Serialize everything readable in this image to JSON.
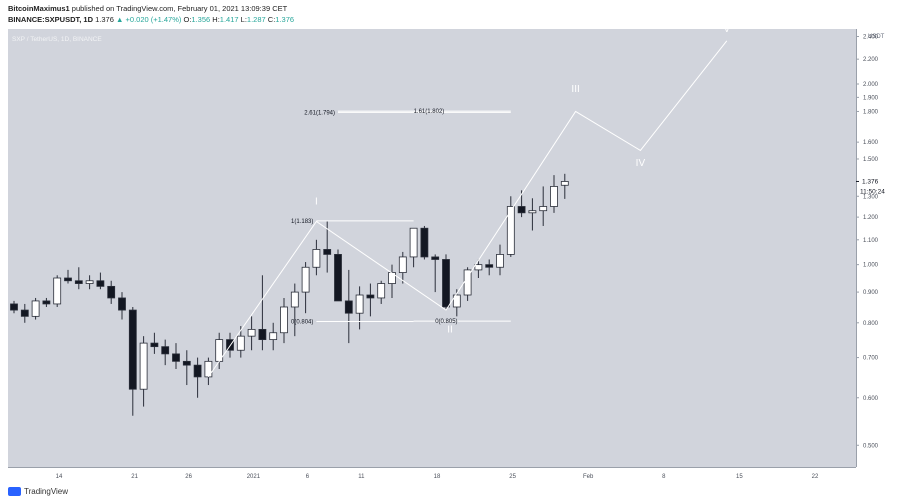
{
  "header": {
    "author": "BitcoinMaximus1",
    "published": "published on TradingView.com, February 01, 2021 13:09:39 CET",
    "symbol": "BINANCE:SXPUSDT, 1D",
    "last": "1.376",
    "change": "+0.020 (+1.47%)",
    "o_label": "O:",
    "o": "1.356",
    "h_label": "H:",
    "h": "1.417",
    "l_label": "L:",
    "l": "1.287",
    "c_label": "C:",
    "c": "1.376"
  },
  "watermark": "SXP / TetherUS, 1D, BINANCE",
  "footer": {
    "brand": "TradingView"
  },
  "colors": {
    "background": "#d1d4dc",
    "line": "#ffffff",
    "bull": "#ffffff",
    "bear": "#131722",
    "up_text": "#26a69a"
  },
  "chart_data": {
    "type": "candlestick",
    "currency": "USDT",
    "y_axis": {
      "scale": "log",
      "ylim": [
        0.46,
        2.47
      ],
      "ticks": [
        "2.400",
        "2.200",
        "2.000",
        "1.900",
        "1.800",
        "1.600",
        "1.500",
        "1.300",
        "1.200",
        "1.100",
        "1.000",
        "0.900",
        "0.800",
        "0.700",
        "0.600",
        "0.500"
      ]
    },
    "x_axis": {
      "ticks": [
        {
          "label": "14",
          "day": 0
        },
        {
          "label": "21",
          "day": 7
        },
        {
          "label": "26",
          "day": 12
        },
        {
          "label": "2021",
          "day": 18
        },
        {
          "label": "6",
          "day": 23
        },
        {
          "label": "11",
          "day": 28
        },
        {
          "label": "18",
          "day": 35
        },
        {
          "label": "25",
          "day": 42
        },
        {
          "label": "Feb",
          "day": 49
        },
        {
          "label": "8",
          "day": 56
        },
        {
          "label": "15",
          "day": 63
        },
        {
          "label": "22",
          "day": 70
        }
      ]
    },
    "price_label": "1.376",
    "countdown": "11:50:24",
    "candles": [
      [
        0.86,
        0.87,
        0.83,
        0.84
      ],
      [
        0.84,
        0.86,
        0.8,
        0.82
      ],
      [
        0.82,
        0.88,
        0.81,
        0.87
      ],
      [
        0.87,
        0.88,
        0.85,
        0.86
      ],
      [
        0.86,
        0.96,
        0.85,
        0.95
      ],
      [
        0.95,
        0.98,
        0.93,
        0.94
      ],
      [
        0.94,
        0.99,
        0.91,
        0.93
      ],
      [
        0.93,
        0.96,
        0.91,
        0.94
      ],
      [
        0.94,
        0.97,
        0.91,
        0.92
      ],
      [
        0.92,
        0.94,
        0.86,
        0.88
      ],
      [
        0.88,
        0.9,
        0.81,
        0.84
      ],
      [
        0.84,
        0.85,
        0.56,
        0.62
      ],
      [
        0.62,
        0.76,
        0.58,
        0.74
      ],
      [
        0.74,
        0.77,
        0.71,
        0.73
      ],
      [
        0.73,
        0.75,
        0.68,
        0.71
      ],
      [
        0.71,
        0.74,
        0.67,
        0.69
      ],
      [
        0.69,
        0.72,
        0.63,
        0.68
      ],
      [
        0.68,
        0.7,
        0.6,
        0.65
      ],
      [
        0.65,
        0.7,
        0.63,
        0.69
      ],
      [
        0.69,
        0.77,
        0.67,
        0.75
      ],
      [
        0.75,
        0.77,
        0.7,
        0.72
      ],
      [
        0.72,
        0.79,
        0.7,
        0.76
      ],
      [
        0.76,
        0.82,
        0.72,
        0.78
      ],
      [
        0.78,
        0.96,
        0.72,
        0.75
      ],
      [
        0.75,
        0.8,
        0.72,
        0.77
      ],
      [
        0.77,
        0.88,
        0.74,
        0.85
      ],
      [
        0.85,
        0.93,
        0.76,
        0.9
      ],
      [
        0.9,
        1.01,
        0.83,
        0.99
      ],
      [
        0.99,
        1.1,
        0.96,
        1.06
      ],
      [
        1.06,
        1.18,
        0.97,
        1.04
      ],
      [
        1.04,
        1.06,
        0.87,
        0.87
      ],
      [
        0.87,
        0.98,
        0.74,
        0.83
      ],
      [
        0.83,
        0.92,
        0.78,
        0.89
      ],
      [
        0.89,
        0.93,
        0.82,
        0.88
      ],
      [
        0.88,
        0.94,
        0.86,
        0.93
      ],
      [
        0.93,
        1.0,
        0.88,
        0.97
      ],
      [
        0.97,
        1.05,
        0.93,
        1.03
      ],
      [
        1.03,
        1.15,
        0.99,
        1.15
      ],
      [
        1.15,
        1.16,
        1.02,
        1.03
      ],
      [
        1.03,
        1.04,
        0.9,
        1.02
      ],
      [
        1.02,
        1.04,
        0.84,
        0.85
      ],
      [
        0.85,
        0.91,
        0.82,
        0.89
      ],
      [
        0.89,
        0.99,
        0.87,
        0.98
      ],
      [
        0.98,
        1.02,
        0.95,
        1.0
      ],
      [
        1.0,
        1.02,
        0.96,
        0.99
      ],
      [
        0.99,
        1.08,
        0.96,
        1.04
      ],
      [
        1.04,
        1.3,
        1.03,
        1.25
      ],
      [
        1.25,
        1.33,
        1.2,
        1.22
      ],
      [
        1.22,
        1.29,
        1.14,
        1.23
      ],
      [
        1.23,
        1.35,
        1.16,
        1.25
      ],
      [
        1.25,
        1.41,
        1.22,
        1.35
      ],
      [
        1.356,
        1.417,
        1.287,
        1.376
      ]
    ],
    "wave_count": {
      "labels": [
        "I",
        "II",
        "III",
        "IV",
        "V"
      ],
      "path": [
        {
          "day": 18,
          "price": 0.65
        },
        {
          "day": 28,
          "price": 1.18
        },
        {
          "day": 40,
          "price": 0.84
        },
        {
          "day": 52,
          "price": 1.8
        },
        {
          "day": 58,
          "price": 1.55
        },
        {
          "day": 66,
          "price": 2.36
        }
      ]
    },
    "fib_levels": [
      {
        "label": "1(1.183)",
        "value": 1.183
      },
      {
        "label": "0(0.804)",
        "value": 0.804
      },
      {
        "label": "0(0.805)",
        "value": 0.805
      },
      {
        "label": "2.61(1.794)",
        "value": 1.794
      },
      {
        "label": "1.61(1.802)",
        "value": 1.802
      }
    ]
  }
}
